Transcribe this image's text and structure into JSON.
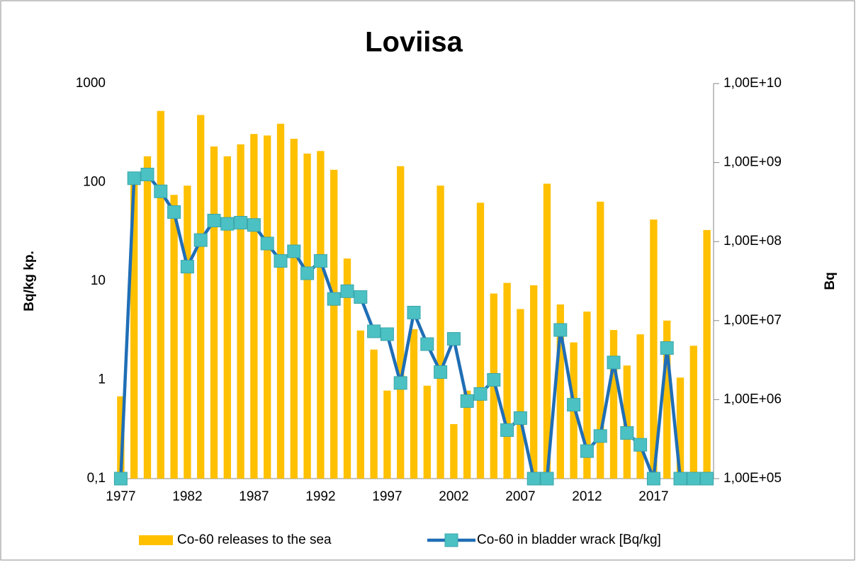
{
  "chart_data": {
    "type": "bar-line",
    "title": "Loviisa",
    "y_label": "Bq/kg kp.",
    "y2_label": "Bq",
    "log_scale": true,
    "grid": false,
    "legend": "bottom",
    "categories": [
      "1977",
      null,
      null,
      null,
      null,
      "1982",
      null,
      null,
      null,
      null,
      "1987",
      null,
      null,
      null,
      null,
      "1992",
      null,
      null,
      null,
      null,
      "1997",
      null,
      null,
      null,
      null,
      "2002",
      null,
      null,
      null,
      null,
      "2007",
      null,
      null,
      null,
      null,
      "2012",
      null,
      null,
      null,
      null,
      "2017",
      null,
      null,
      null,
      null
    ],
    "ylim": [
      0.1,
      1000
    ],
    "yticks": [
      {
        "value": 0.1,
        "label": "0,1"
      },
      1,
      10,
      100,
      1000
    ],
    "y2lim": [
      100000,
      10000000000
    ],
    "y2ticks": [
      {
        "value": 100000,
        "label": "1,00E+05"
      },
      {
        "value": 1000000,
        "label": "1,00E+06"
      },
      {
        "value": 10000000,
        "label": "1,00E+07"
      },
      {
        "value": 100000000,
        "label": "1,00E+08"
      },
      {
        "value": 1000000000,
        "label": "1,00E+09"
      },
      {
        "value": 10000000000,
        "label": "1,00E+10"
      }
    ],
    "series": [
      {
        "name": "Co-60 releases to the sea",
        "type": "bar",
        "axis": "y2",
        "color": "#ffc000",
        "values": [
          1100000,
          600000000,
          1200000000,
          4500000000,
          390000000,
          510000000,
          4000000000,
          1600000000,
          1200000000,
          1700000000,
          2300000000,
          2200000000,
          3100000000,
          2000000000,
          1300000000,
          1400000000,
          810000000,
          61000000,
          7500000,
          4300000,
          1300000,
          900000000,
          7800000,
          1500000,
          510000000,
          490000,
          1300000,
          310000000,
          22000000,
          30000000,
          14000000,
          28000000,
          540000000,
          16000000,
          5300000,
          13000000,
          320000000,
          7600000,
          2700000,
          6700000,
          190000000,
          10000000,
          1900000,
          4800000,
          140000000
        ]
      },
      {
        "name": "Co-60 in bladder wrack [Bq/kg]",
        "type": "line",
        "axis": "y",
        "color": "#1f6eb5",
        "marker_color": "#4bc1c4",
        "values": [
          0.1,
          110,
          120,
          81,
          50,
          14,
          26,
          41,
          38,
          39,
          37,
          24,
          16,
          20,
          12,
          16,
          6.6,
          7.9,
          6.9,
          3.1,
          2.9,
          0.93,
          4.8,
          2.3,
          1.2,
          2.6,
          0.61,
          0.72,
          1.0,
          0.31,
          0.41,
          0.1,
          0.1,
          3.2,
          0.56,
          0.19,
          0.27,
          1.5,
          0.29,
          0.22,
          0.1,
          2.1,
          0.1,
          0.1,
          0.1
        ]
      }
    ]
  }
}
